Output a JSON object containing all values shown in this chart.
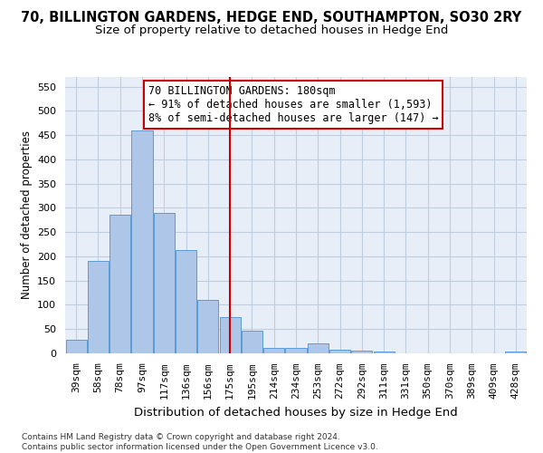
{
  "title": "70, BILLINGTON GARDENS, HEDGE END, SOUTHAMPTON, SO30 2RY",
  "subtitle": "Size of property relative to detached houses in Hedge End",
  "xlabel": "Distribution of detached houses by size in Hedge End",
  "ylabel": "Number of detached properties",
  "categories": [
    "39sqm",
    "58sqm",
    "78sqm",
    "97sqm",
    "117sqm",
    "136sqm",
    "156sqm",
    "175sqm",
    "195sqm",
    "214sqm",
    "234sqm",
    "253sqm",
    "272sqm",
    "292sqm",
    "311sqm",
    "331sqm",
    "350sqm",
    "370sqm",
    "389sqm",
    "409sqm",
    "428sqm"
  ],
  "values": [
    28,
    190,
    286,
    460,
    290,
    213,
    110,
    74,
    46,
    12,
    12,
    20,
    8,
    6,
    4,
    0,
    0,
    0,
    0,
    0,
    4
  ],
  "bar_color": "#aec6e8",
  "bar_edge_color": "#5b9bd5",
  "vline_x_index": 7,
  "vline_color": "#cc0000",
  "annotation_line1": "70 BILLINGTON GARDENS: 180sqm",
  "annotation_line2": "← 91% of detached houses are smaller (1,593)",
  "annotation_line3": "8% of semi-detached houses are larger (147) →",
  "annotation_box_color": "#ffffff",
  "annotation_box_edge_color": "#cc0000",
  "ylim": [
    0,
    570
  ],
  "yticks": [
    0,
    50,
    100,
    150,
    200,
    250,
    300,
    350,
    400,
    450,
    500,
    550
  ],
  "background_color": "#ffffff",
  "plot_bg_color": "#e8eef8",
  "grid_color": "#c0cce0",
  "footer_text": "Contains HM Land Registry data © Crown copyright and database right 2024.\nContains public sector information licensed under the Open Government Licence v3.0.",
  "title_fontsize": 10.5,
  "subtitle_fontsize": 9.5,
  "xlabel_fontsize": 9.5,
  "ylabel_fontsize": 8.5,
  "tick_fontsize": 8,
  "annotation_fontsize": 8.5
}
